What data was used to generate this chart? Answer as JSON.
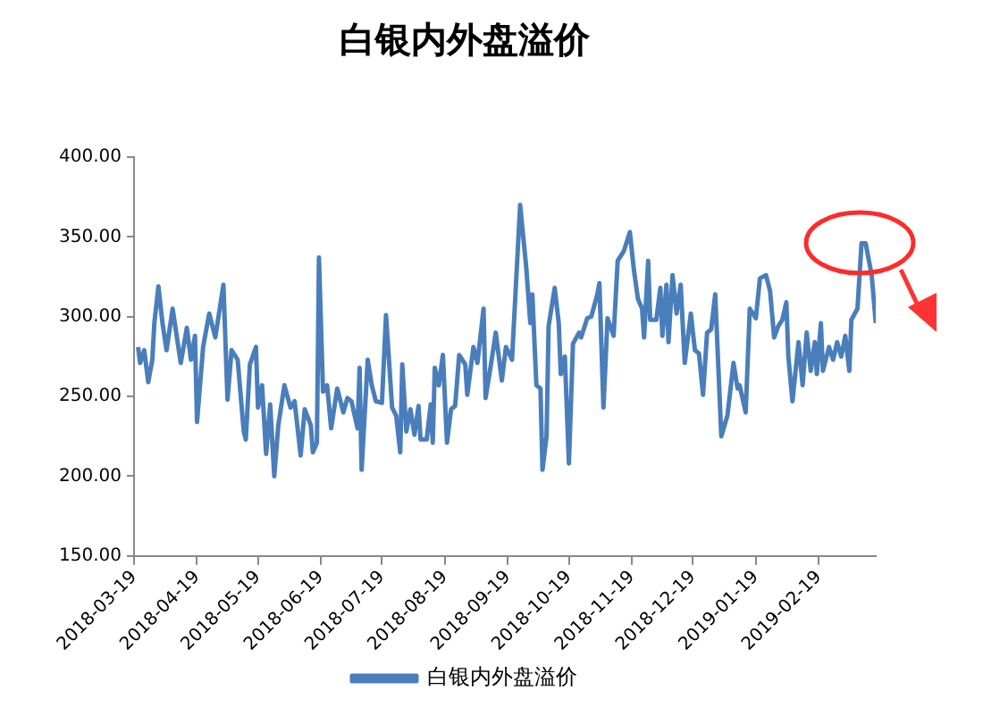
{
  "chart_data": {
    "type": "line",
    "title": "白银内外盘溢价",
    "legend": "bottom",
    "marker": "none",
    "line_style": "solid",
    "grid": false,
    "xlim": [
      "2018-03-19",
      "2019-03-19"
    ],
    "xticks": [
      "2018-03-19",
      "2018-04-19",
      "2018-05-19",
      "2018-06-19",
      "2018-07-19",
      "2018-08-19",
      "2018-09-19",
      "2018-10-19",
      "2018-11-19",
      "2018-12-19",
      "2019-01-19",
      "2019-02-19"
    ],
    "ylim": [
      150,
      400
    ],
    "yticks": [
      {
        "value": 150,
        "label": "150.00"
      },
      {
        "value": 200,
        "label": "200.00"
      },
      {
        "value": 250,
        "label": "250.00"
      },
      {
        "value": 300,
        "label": "300.00"
      },
      {
        "value": 350,
        "label": "350.00"
      },
      {
        "value": 400,
        "label": "400.00"
      }
    ],
    "x": [
      "2018-03-21",
      "2018-03-22",
      "2018-03-24",
      "2018-03-26",
      "2018-03-28",
      "2018-03-29",
      "2018-03-31",
      "2018-04-02",
      "2018-04-04",
      "2018-04-07",
      "2018-04-11",
      "2018-04-14",
      "2018-04-16",
      "2018-04-18",
      "2018-04-19",
      "2018-04-22",
      "2018-04-25",
      "2018-04-28",
      "2018-05-02",
      "2018-05-04",
      "2018-05-06",
      "2018-05-09",
      "2018-05-12",
      "2018-05-13",
      "2018-05-15",
      "2018-05-18",
      "2018-05-19",
      "2018-05-21",
      "2018-05-23",
      "2018-05-25",
      "2018-05-27",
      "2018-05-29",
      "2018-06-01",
      "2018-06-04",
      "2018-06-06",
      "2018-06-09",
      "2018-06-11",
      "2018-06-14",
      "2018-06-15",
      "2018-06-17",
      "2018-06-18",
      "2018-06-20",
      "2018-06-22",
      "2018-06-24",
      "2018-06-27",
      "2018-06-30",
      "2018-07-02",
      "2018-07-04",
      "2018-07-07",
      "2018-07-08",
      "2018-07-09",
      "2018-07-12",
      "2018-07-14",
      "2018-07-16",
      "2018-07-19",
      "2018-07-21",
      "2018-07-24",
      "2018-07-26",
      "2018-07-28",
      "2018-07-29",
      "2018-07-31",
      "2018-08-02",
      "2018-08-04",
      "2018-08-06",
      "2018-08-07",
      "2018-08-10",
      "2018-08-12",
      "2018-08-13",
      "2018-08-14",
      "2018-08-16",
      "2018-08-18",
      "2018-08-20",
      "2018-08-22",
      "2018-08-24",
      "2018-08-26",
      "2018-08-29",
      "2018-08-30",
      "2018-09-02",
      "2018-09-04",
      "2018-09-07",
      "2018-09-08",
      "2018-09-11",
      "2018-09-13",
      "2018-09-16",
      "2018-09-18",
      "2018-09-21",
      "2018-09-25",
      "2018-09-28",
      "2018-09-30",
      "2018-10-01",
      "2018-10-03",
      "2018-10-05",
      "2018-10-06",
      "2018-10-08",
      "2018-10-09",
      "2018-10-12",
      "2018-10-14",
      "2018-10-15",
      "2018-10-17",
      "2018-10-19",
      "2018-10-21",
      "2018-10-24",
      "2018-10-25",
      "2018-10-28",
      "2018-10-30",
      "2018-11-02",
      "2018-11-03",
      "2018-11-05",
      "2018-11-07",
      "2018-11-10",
      "2018-11-12",
      "2018-11-15",
      "2018-11-18",
      "2018-11-20",
      "2018-11-22",
      "2018-11-24",
      "2018-11-25",
      "2018-11-27",
      "2018-11-28",
      "2018-12-01",
      "2018-12-03",
      "2018-12-04",
      "2018-12-06",
      "2018-12-07",
      "2018-12-09",
      "2018-12-11",
      "2018-12-13",
      "2018-12-15",
      "2018-12-18",
      "2018-12-20",
      "2018-12-22",
      "2018-12-24",
      "2018-12-26",
      "2018-12-28",
      "2018-12-30",
      "2019-01-02",
      "2019-01-05",
      "2019-01-08",
      "2019-01-10",
      "2019-01-11",
      "2019-01-14",
      "2019-01-16",
      "2019-01-19",
      "2019-01-21",
      "2019-01-24",
      "2019-01-26",
      "2019-01-28",
      "2019-01-30",
      "2019-02-01",
      "2019-02-03",
      "2019-02-04",
      "2019-02-06",
      "2019-02-09",
      "2019-02-11",
      "2019-02-13",
      "2019-02-15",
      "2019-02-17",
      "2019-02-18",
      "2019-02-20",
      "2019-02-21",
      "2019-02-24",
      "2019-02-26",
      "2019-02-28",
      "2019-03-02",
      "2019-03-04",
      "2019-03-06",
      "2019-03-07",
      "2019-03-10",
      "2019-03-12",
      "2019-03-14",
      "2019-03-17",
      "2019-03-19"
    ],
    "series": [
      {
        "name": "白银内外盘溢价",
        "color": "#4a7ebb",
        "values": [
          281,
          271,
          279,
          259,
          273,
          296,
          319,
          296,
          279,
          305,
          271,
          293,
          273,
          288,
          234,
          281,
          302,
          287,
          320,
          248,
          279,
          273,
          228,
          223,
          270,
          281,
          243,
          257,
          214,
          245,
          200,
          232,
          257,
          243,
          247,
          213,
          242,
          232,
          215,
          221,
          337,
          253,
          257,
          230,
          255,
          240,
          249,
          247,
          230,
          268,
          204,
          273,
          257,
          247,
          246,
          301,
          243,
          238,
          215,
          270,
          228,
          242,
          226,
          244,
          223,
          223,
          245,
          221,
          268,
          257,
          276,
          221,
          242,
          244,
          276,
          270,
          251,
          281,
          271,
          305,
          249,
          273,
          290,
          260,
          281,
          273,
          370,
          331,
          296,
          314,
          257,
          255,
          204,
          225,
          294,
          318,
          296,
          264,
          275,
          208,
          283,
          290,
          287,
          299,
          300,
          314,
          321,
          243,
          299,
          288,
          335,
          341,
          353,
          329,
          311,
          305,
          287,
          335,
          298,
          298,
          318,
          288,
          320,
          284,
          326,
          302,
          320,
          271,
          302,
          279,
          277,
          251,
          290,
          292,
          314,
          225,
          238,
          271,
          255,
          257,
          240,
          305,
          299,
          324,
          326,
          316,
          287,
          294,
          298,
          309,
          275,
          247,
          284,
          257,
          290,
          266,
          284,
          264,
          296,
          266,
          281,
          273,
          284,
          275,
          288,
          266,
          298,
          305,
          346,
          346,
          326,
          296
        ]
      }
    ]
  }
}
